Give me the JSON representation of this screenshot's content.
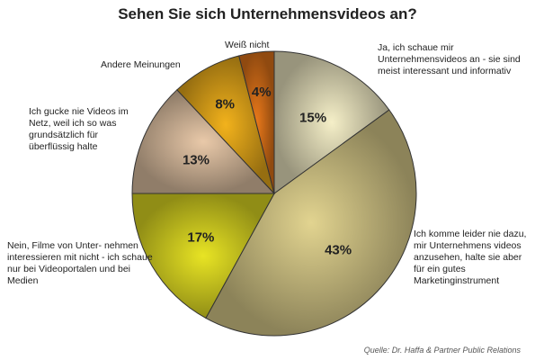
{
  "chart_data": {
    "type": "pie",
    "title": "Sehen Sie sich Unternehmensvideos an?",
    "source": "Quelle: Dr. Haffa & Partner Public Relations",
    "slices": [
      {
        "label": "Ja, ich schaue mir Unternehmensvideos an - sie sind meist interessant und informativ",
        "value": 15,
        "display": "15%",
        "color": "#f5efc8"
      },
      {
        "label": "Ich komme leider nie dazu, mir Unternehmens videos anzusehen, halte sie aber für ein gutes Marketinginstrument",
        "value": 43,
        "display": "43%",
        "color": "#e2d490"
      },
      {
        "label": "Nein, Filme von Unter- nehmen interessieren mit nicht - ich schaue nur bei Videoportalen und bei Medien",
        "value": 17,
        "display": "17%",
        "color": "#e8e424"
      },
      {
        "label": "Ich gucke nie Videos im Netz, weil ich so was grundsätzlich für überflüssig halte",
        "value": 13,
        "display": "13%",
        "color": "#e9c9a9"
      },
      {
        "label": "Andere Meinungen",
        "value": 8,
        "display": "8%",
        "color": "#f2b21c"
      },
      {
        "label": "Weiß nicht",
        "value": 4,
        "display": "4%",
        "color": "#e8781a"
      }
    ]
  }
}
